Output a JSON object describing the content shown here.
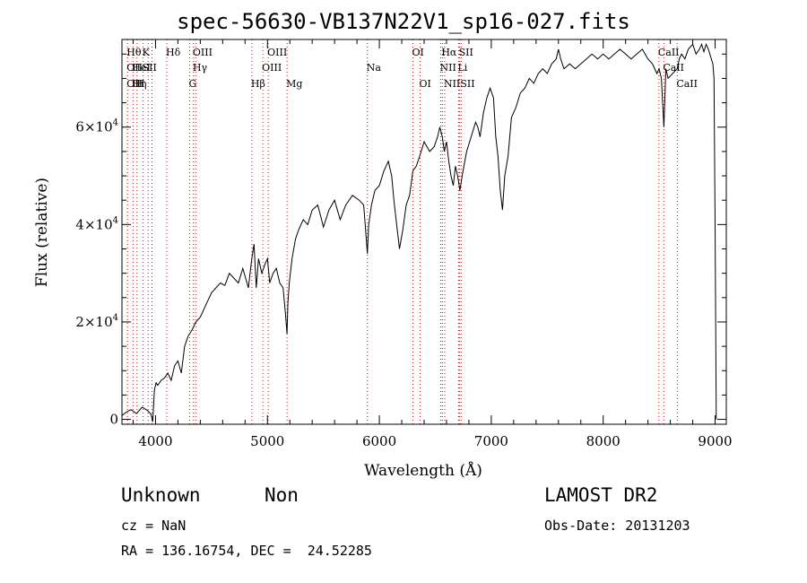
{
  "chart_data": {
    "type": "line",
    "title": "spec-56630-VB137N22V1_sp16-027.fits",
    "xlabel": "Wavelength (Å)",
    "ylabel": "Flux (relative)",
    "xlim": [
      3700,
      9100
    ],
    "ylim": [
      -1000,
      78000
    ],
    "x_ticks": [
      {
        "value": 4000,
        "label": "4000"
      },
      {
        "value": 5000,
        "label": "5000"
      },
      {
        "value": 6000,
        "label": "6000"
      },
      {
        "value": 7000,
        "label": "7000"
      },
      {
        "value": 8000,
        "label": "8000"
      },
      {
        "value": 9000,
        "label": "9000"
      }
    ],
    "y_ticks": [
      {
        "value": 0,
        "mantissa": "0",
        "exponent": ""
      },
      {
        "value": 20000,
        "mantissa": "2×10",
        "exponent": "4"
      },
      {
        "value": 40000,
        "mantissa": "4×10",
        "exponent": "4"
      },
      {
        "value": 60000,
        "mantissa": "6×10",
        "exponent": "4"
      }
    ],
    "x_minor_step": 200,
    "y_minor_step": 5000,
    "series": [
      {
        "x": [
          3700,
          3740,
          3780,
          3830,
          3880,
          3930,
          3960,
          3975,
          3990,
          4005,
          4020,
          4050,
          4080,
          4110,
          4140,
          4170,
          4200,
          4230,
          4260,
          4290,
          4330,
          4360,
          4400,
          4430,
          4460,
          4500,
          4540,
          4580,
          4620,
          4660,
          4700,
          4740,
          4780,
          4830,
          4860,
          4880,
          4900,
          4920,
          4950,
          4980,
          5000,
          5020,
          5050,
          5080,
          5110,
          5140,
          5160,
          5175,
          5183,
          5195,
          5220,
          5250,
          5280,
          5320,
          5360,
          5400,
          5450,
          5500,
          5550,
          5600,
          5650,
          5700,
          5760,
          5820,
          5860,
          5880,
          5893,
          5905,
          5930,
          5960,
          6000,
          6040,
          6080,
          6110,
          6130,
          6140,
          6160,
          6180,
          6210,
          6240,
          6270,
          6300,
          6330,
          6360,
          6400,
          6450,
          6490,
          6520,
          6540,
          6563,
          6580,
          6600,
          6620,
          6640,
          6660,
          6680,
          6700,
          6720,
          6740,
          6780,
          6820,
          6860,
          6880,
          6900,
          6930,
          6960,
          6990,
          7020,
          7040,
          7060,
          7080,
          7100,
          7120,
          7150,
          7180,
          7220,
          7260,
          7300,
          7340,
          7380,
          7420,
          7460,
          7500,
          7540,
          7580,
          7600,
          7620,
          7650,
          7700,
          7750,
          7800,
          7850,
          7900,
          7950,
          8000,
          8050,
          8100,
          8150,
          8200,
          8250,
          8300,
          8350,
          8400,
          8440,
          8480,
          8500,
          8520,
          8542,
          8560,
          8580,
          8620,
          8662,
          8680,
          8700,
          8730,
          8760,
          8800,
          8830,
          8860,
          8880,
          8900,
          8920,
          8940,
          8960,
          8980,
          8990,
          9000,
          9010
        ],
        "y": [
          800,
          1500,
          2000,
          1200,
          2500,
          1800,
          1000,
          -500,
          6000,
          7500,
          7000,
          8000,
          8500,
          9500,
          8000,
          11000,
          12000,
          9500,
          15000,
          17000,
          18500,
          20000,
          21000,
          22500,
          24000,
          26000,
          27000,
          28000,
          27500,
          30000,
          29000,
          28000,
          31000,
          27000,
          33000,
          36000,
          27000,
          33000,
          30000,
          32000,
          33000,
          28000,
          30000,
          31000,
          28000,
          27000,
          22000,
          17500,
          24000,
          28000,
          33000,
          37000,
          39000,
          41000,
          40000,
          43000,
          44000,
          39500,
          43000,
          45000,
          41000,
          44000,
          46000,
          45000,
          44000,
          38000,
          34000,
          40000,
          44000,
          47000,
          48000,
          51000,
          53000,
          50000,
          45000,
          43000,
          39000,
          35000,
          39000,
          44000,
          46000,
          51000,
          52000,
          54000,
          57000,
          55000,
          56000,
          58000,
          60000,
          58000,
          55000,
          57000,
          53000,
          50000,
          48000,
          52000,
          50000,
          47000,
          50000,
          55000,
          58000,
          61000,
          60000,
          58000,
          63000,
          66000,
          68000,
          66000,
          58000,
          54000,
          47000,
          43000,
          50000,
          54000,
          62000,
          64000,
          67000,
          68000,
          70000,
          69000,
          71000,
          72000,
          71000,
          73000,
          74000,
          76000,
          74000,
          72000,
          73000,
          72000,
          73000,
          74000,
          75000,
          74000,
          75000,
          74000,
          75000,
          76000,
          75000,
          74000,
          75000,
          76000,
          74000,
          73000,
          71000,
          72000,
          70000,
          60000,
          72000,
          70000,
          71000,
          72000,
          74000,
          75000,
          74000,
          76000,
          77000,
          75000,
          76000,
          77000,
          75500,
          77000,
          76000,
          74500,
          73000,
          70000,
          40000,
          0
        ]
      }
    ],
    "lines": [
      {
        "x": 3750,
        "color": "#a02020",
        "labels": [
          {
            "row": 1,
            "text": "Hθ"
          },
          {
            "row": 2,
            "text": "OII"
          },
          {
            "row": 3,
            "text": "OII"
          }
        ]
      },
      {
        "x": 3799,
        "color": "#a02020",
        "labels": [
          {
            "row": 2,
            "text": "HeI"
          },
          {
            "row": 3,
            "text": "Hη"
          }
        ]
      },
      {
        "x": 3835,
        "color": "#a02020",
        "labels": [
          {
            "row": 3,
            "text": "H"
          }
        ]
      },
      {
        "x": 3889,
        "color": "#a02020",
        "labels": [
          {
            "row": 1,
            "text": "K"
          },
          {
            "row": 2,
            "text": "SII"
          }
        ]
      },
      {
        "x": 3934,
        "color": "#a02020",
        "labels": []
      },
      {
        "x": 3968,
        "color": "#a02020",
        "labels": []
      },
      {
        "x": 4101,
        "color": "#a02020",
        "labels": [
          {
            "row": 1,
            "text": "Hδ"
          }
        ]
      },
      {
        "x": 4305,
        "color": "#a02020",
        "labels": [
          {
            "row": 3,
            "text": "G"
          }
        ]
      },
      {
        "x": 4340,
        "color": "#a02020",
        "labels": [
          {
            "row": 1,
            "text": "OIII"
          },
          {
            "row": 2,
            "text": "Hγ"
          }
        ]
      },
      {
        "x": 4363,
        "color": "#a02020",
        "labels": []
      },
      {
        "x": 4861,
        "color": "#a02020",
        "labels": [
          {
            "row": 3,
            "text": "Hβ"
          }
        ]
      },
      {
        "x": 4959,
        "color": "#a02020",
        "labels": [
          {
            "row": 2,
            "text": "OIII"
          }
        ]
      },
      {
        "x": 5007,
        "color": "#a02020",
        "labels": [
          {
            "row": 1,
            "text": "OIII"
          }
        ]
      },
      {
        "x": 5175,
        "color": "#a02020",
        "labels": [
          {
            "row": 3,
            "text": "Mg"
          }
        ]
      },
      {
        "x": 5893,
        "color": "#a02020",
        "labels": [
          {
            "row": 2,
            "text": "Na"
          }
        ]
      },
      {
        "x": 6300,
        "color": "#a02020",
        "labels": [
          {
            "row": 1,
            "text": "OI"
          }
        ]
      },
      {
        "x": 6364,
        "color": "#a02020",
        "labels": [
          {
            "row": 3,
            "text": "OI"
          }
        ]
      },
      {
        "x": 6548,
        "color": "#a02020",
        "labels": [
          {
            "row": 2,
            "text": "NII"
          }
        ]
      },
      {
        "x": 6563,
        "color": "#a02020",
        "labels": [
          {
            "row": 1,
            "text": "Hα"
          }
        ]
      },
      {
        "x": 6584,
        "color": "#a02020",
        "labels": [
          {
            "row": 3,
            "text": "NII"
          }
        ]
      },
      {
        "x": 6708,
        "color": "#a02020",
        "labels": [
          {
            "row": 2,
            "text": "Li"
          }
        ]
      },
      {
        "x": 6717,
        "color": "#a02020",
        "labels": [
          {
            "row": 1,
            "text": "SII"
          }
        ]
      },
      {
        "x": 6731,
        "color": "#a02020",
        "labels": [
          {
            "row": 3,
            "text": "SII"
          }
        ]
      },
      {
        "x": 8498,
        "color": "#a02020",
        "labels": [
          {
            "row": 1,
            "text": "CaII"
          }
        ]
      },
      {
        "x": 8542,
        "color": "#a02020",
        "labels": [
          {
            "row": 2,
            "text": "CaII"
          }
        ]
      },
      {
        "x": 8662,
        "color": "#a02020",
        "labels": [
          {
            "row": 3,
            "text": "CaII"
          }
        ]
      }
    ]
  },
  "info": {
    "class": "Unknown",
    "subclass": "Non",
    "cz": "cz = NaN",
    "coords": "RA = 136.16754, DEC =  24.52285",
    "survey": "LAMOST DR2",
    "obs_date": "Obs-Date: 20131203"
  }
}
